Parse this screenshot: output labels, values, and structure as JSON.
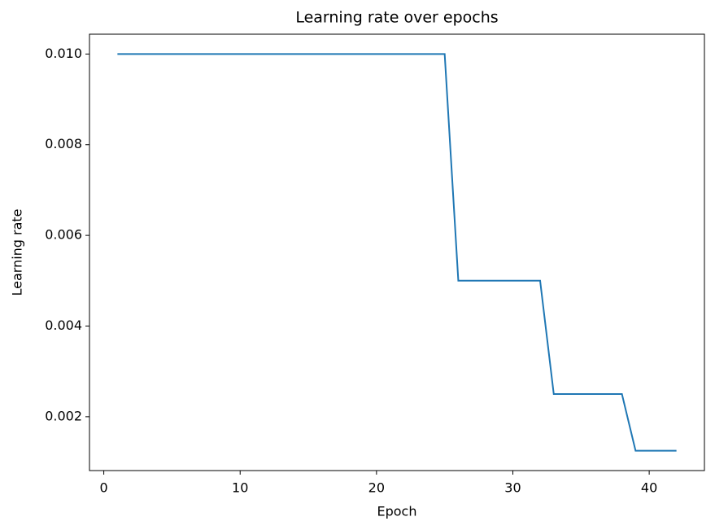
{
  "chart_data": {
    "type": "line",
    "title": "Learning rate over epochs",
    "x_label": "Epoch",
    "y_label": "Learning rate",
    "x": [
      1,
      2,
      3,
      4,
      5,
      6,
      7,
      8,
      9,
      10,
      11,
      12,
      13,
      14,
      15,
      16,
      17,
      18,
      19,
      20,
      21,
      22,
      23,
      24,
      25,
      26,
      27,
      28,
      29,
      30,
      31,
      32,
      33,
      34,
      35,
      36,
      37,
      38,
      39,
      40,
      41,
      42
    ],
    "series": [
      {
        "color": "#1f77b4",
        "values": [
          0.01,
          0.01,
          0.01,
          0.01,
          0.01,
          0.01,
          0.01,
          0.01,
          0.01,
          0.01,
          0.01,
          0.01,
          0.01,
          0.01,
          0.01,
          0.01,
          0.01,
          0.01,
          0.01,
          0.01,
          0.01,
          0.01,
          0.01,
          0.01,
          0.01,
          0.005,
          0.005,
          0.005,
          0.005,
          0.005,
          0.005,
          0.005,
          0.0025,
          0.0025,
          0.0025,
          0.0025,
          0.0025,
          0.0025,
          0.00125,
          0.00125,
          0.00125,
          0.00125
        ]
      }
    ],
    "xlim": [
      -1.05,
      44.05
    ],
    "xticks": [
      0,
      10,
      20,
      30,
      40
    ],
    "ylim": [
      0.0008125,
      0.0104375
    ],
    "yticks": [
      0.002,
      0.004,
      0.006,
      0.008,
      {
        "value": 0.01,
        "label": "0.010"
      }
    ],
    "grid": false
  }
}
